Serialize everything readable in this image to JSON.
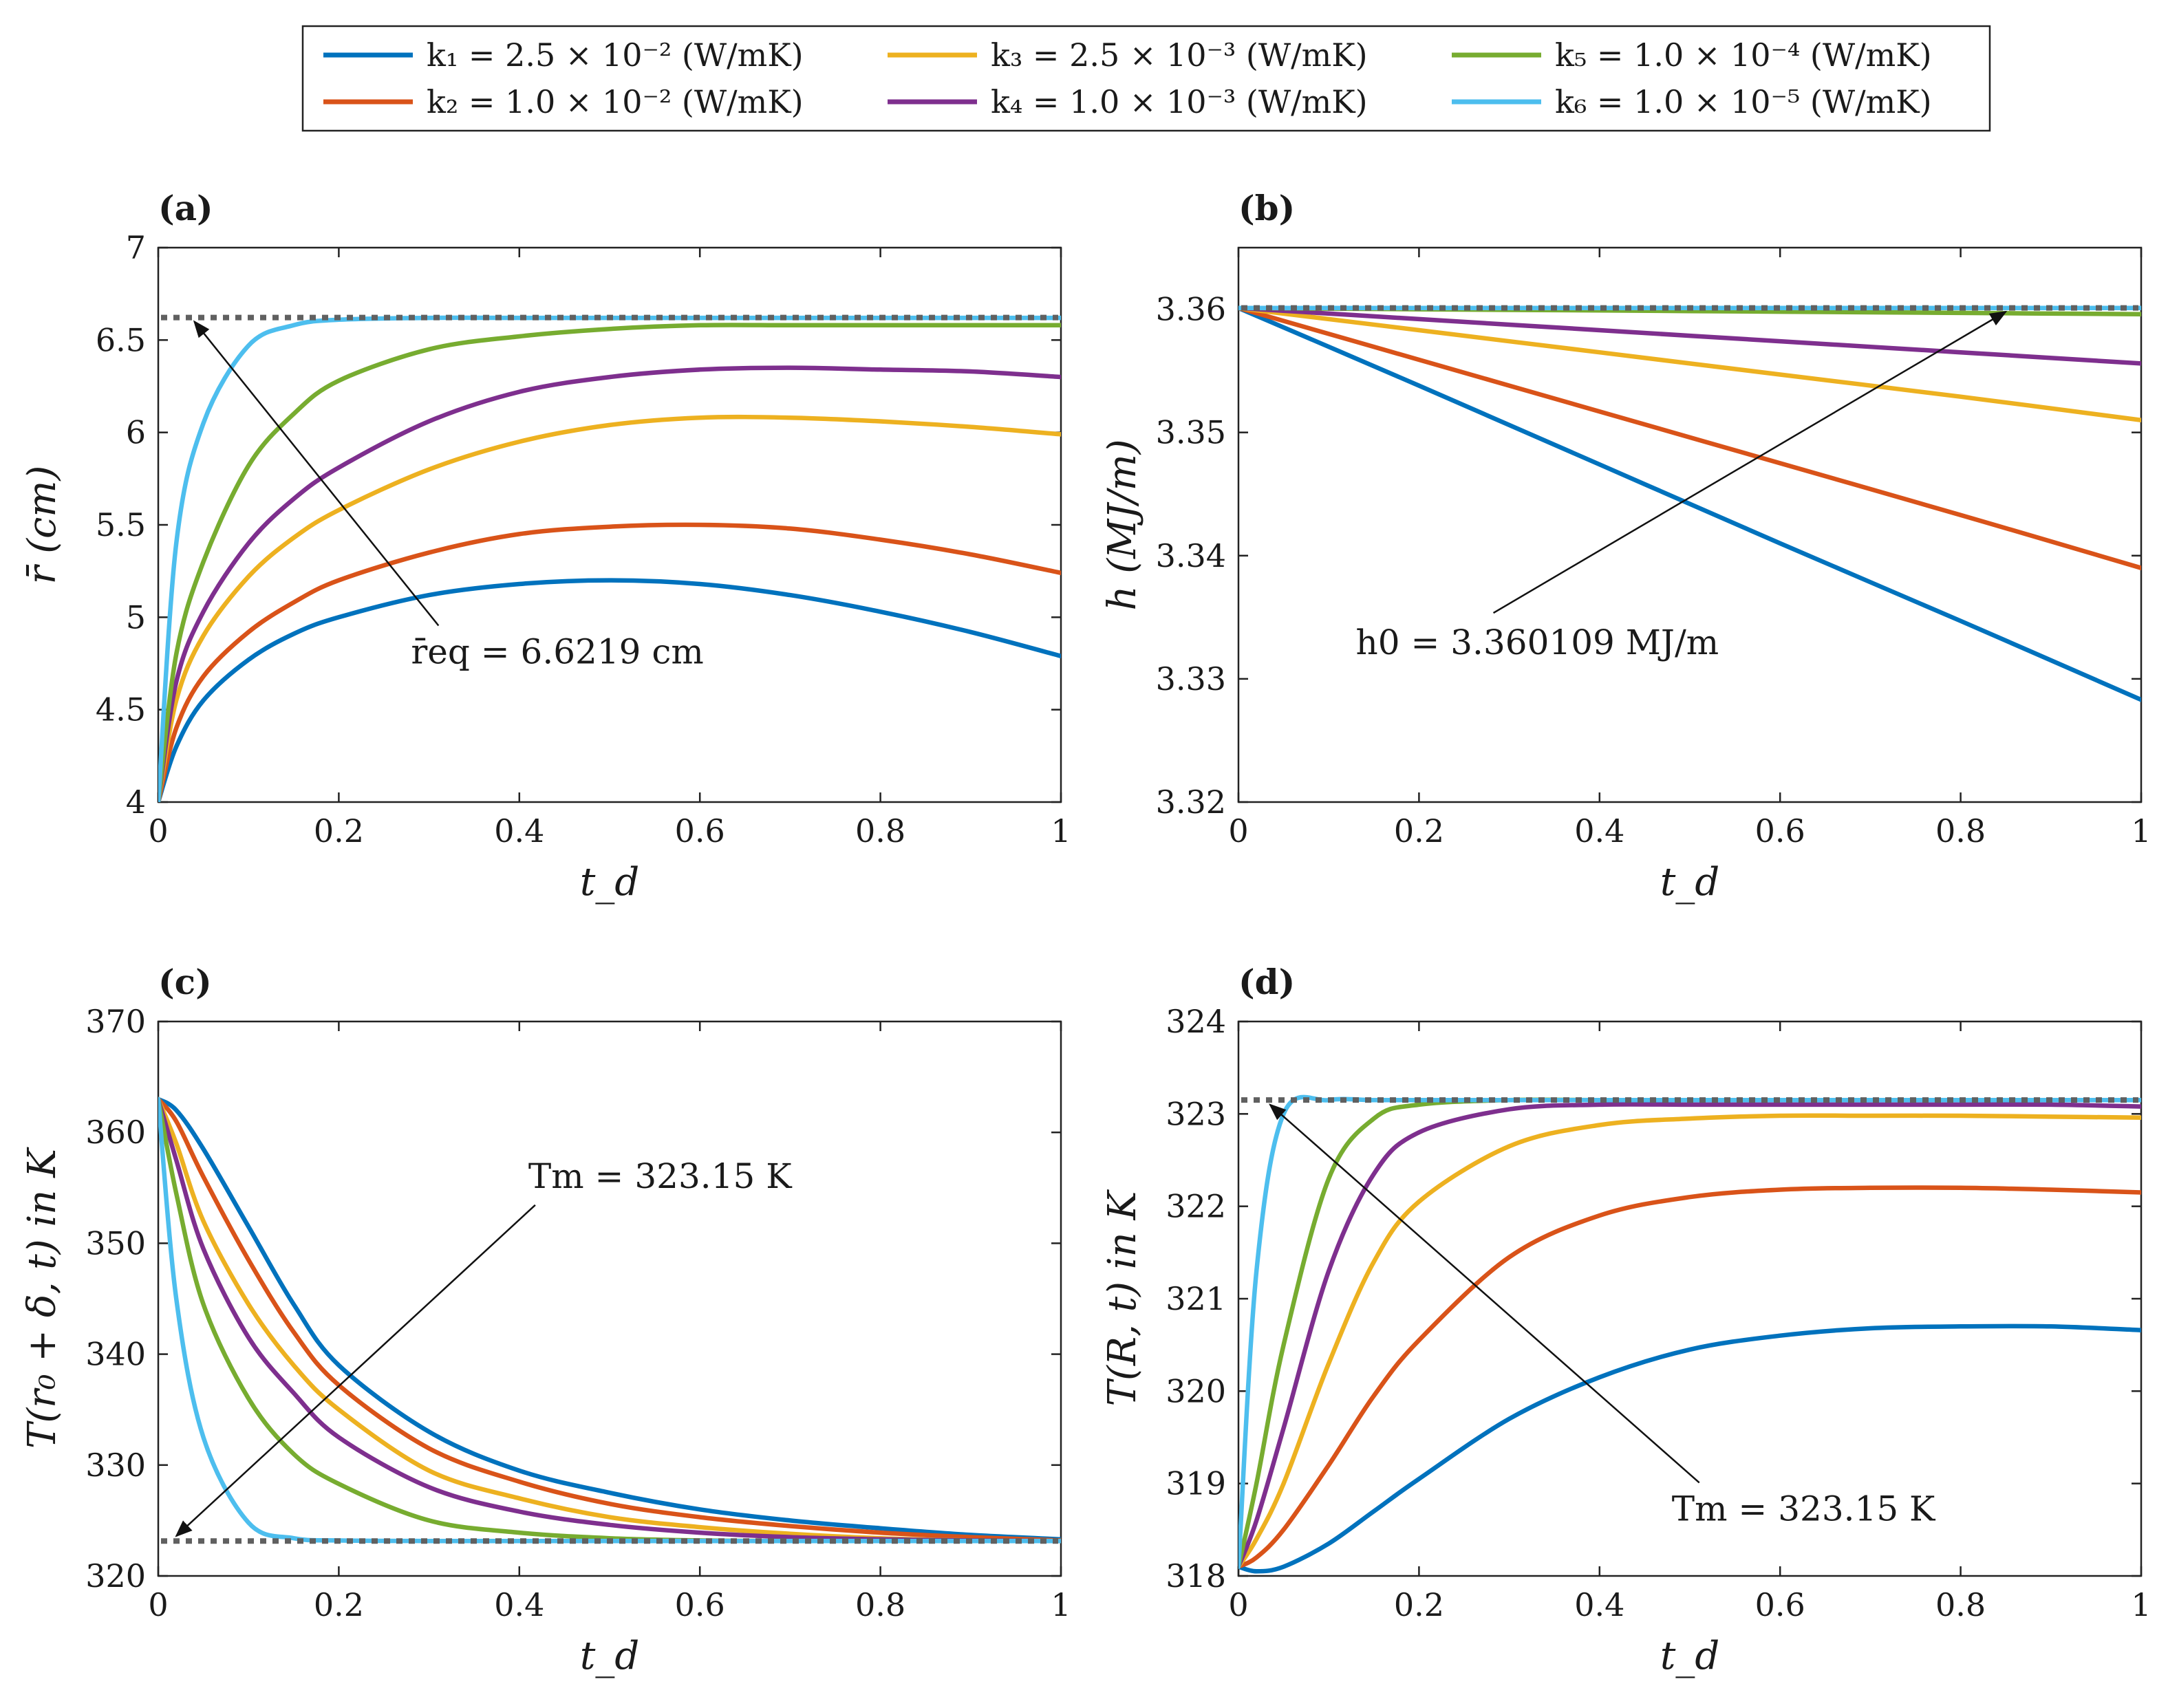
{
  "colors": {
    "k1": "#0072BD",
    "k2": "#D95319",
    "k3": "#EDB120",
    "k4": "#7E2F8E",
    "k5": "#77AC30",
    "k6": "#4DBEEE",
    "reference": "#606060"
  },
  "legend": {
    "placement": "top-center",
    "entries": [
      {
        "series": "k1",
        "label": "k₁ = 2.5 × 10⁻² (W/mK)"
      },
      {
        "series": "k2",
        "label": "k₂ = 1.0 × 10⁻² (W/mK)"
      },
      {
        "series": "k3",
        "label": "k₃ = 2.5 × 10⁻³ (W/mK)"
      },
      {
        "series": "k4",
        "label": "k₄ = 1.0 × 10⁻³ (W/mK)"
      },
      {
        "series": "k5",
        "label": "k₅ = 1.0 × 10⁻⁴ (W/mK)"
      },
      {
        "series": "k6",
        "label": "k₆ = 1.0 × 10⁻⁵ (W/mK)"
      }
    ]
  },
  "chart_data": [
    {
      "id": "a",
      "type": "line",
      "panel_label": "(a)",
      "xlabel": "t_d",
      "ylabel": "r̄ (cm)",
      "xlim": [
        0,
        1
      ],
      "ylim": [
        4,
        7
      ],
      "xticks": [
        "0",
        "0.2",
        "0.4",
        "0.6",
        "0.8",
        "1"
      ],
      "yticks": [
        "4",
        "4.5",
        "5",
        "5.5",
        "6",
        "6.5",
        "7"
      ],
      "x": [
        0,
        0.02,
        0.05,
        0.1,
        0.15,
        0.2,
        0.3,
        0.4,
        0.5,
        0.6,
        0.7,
        0.8,
        0.9,
        1.0
      ],
      "reference": {
        "y": 6.6219,
        "label": "r̄_eq = 6.6219 cm"
      },
      "annotation": {
        "text": "r̄eq = 6.6219 cm",
        "text_at": [
          0.28,
          4.75
        ],
        "arrow_to": [
          0.04,
          6.6
        ]
      },
      "series": [
        {
          "key": "k1",
          "values": [
            4.0,
            4.3,
            4.55,
            4.77,
            4.91,
            5.0,
            5.12,
            5.18,
            5.2,
            5.18,
            5.12,
            5.03,
            4.92,
            4.79
          ]
        },
        {
          "key": "k2",
          "values": [
            4.0,
            4.4,
            4.68,
            4.92,
            5.08,
            5.2,
            5.35,
            5.45,
            5.49,
            5.5,
            5.48,
            5.42,
            5.34,
            5.24
          ]
        },
        {
          "key": "k3",
          "values": [
            4.0,
            4.55,
            4.9,
            5.22,
            5.43,
            5.58,
            5.8,
            5.95,
            6.04,
            6.08,
            6.08,
            6.06,
            6.03,
            5.99
          ]
        },
        {
          "key": "k4",
          "values": [
            4.0,
            4.65,
            5.03,
            5.4,
            5.64,
            5.81,
            6.06,
            6.22,
            6.3,
            6.34,
            6.35,
            6.34,
            6.33,
            6.3
          ]
        },
        {
          "key": "k5",
          "values": [
            4.0,
            4.8,
            5.3,
            5.82,
            6.1,
            6.28,
            6.45,
            6.52,
            6.56,
            6.58,
            6.58,
            6.58,
            6.58,
            6.58
          ]
        },
        {
          "key": "k6",
          "values": [
            4.0,
            5.4,
            6.05,
            6.47,
            6.58,
            6.61,
            6.62,
            6.62,
            6.62,
            6.62,
            6.62,
            6.62,
            6.62,
            6.62
          ]
        }
      ]
    },
    {
      "id": "b",
      "type": "line",
      "panel_label": "(b)",
      "xlabel": "t_d",
      "ylabel": "h (MJ/m)",
      "xlim": [
        0,
        1
      ],
      "ylim": [
        3.32,
        3.365
      ],
      "xticks": [
        "0",
        "0.2",
        "0.4",
        "0.6",
        "0.8",
        "1"
      ],
      "yticks": [
        "3.32",
        "3.33",
        "3.34",
        "3.35",
        "3.36"
      ],
      "x": [
        0,
        0.2,
        0.4,
        0.6,
        0.8,
        1.0
      ],
      "reference": {
        "y": 3.360109,
        "label": "h₀ = 3.360109 MJ/m"
      },
      "annotation": {
        "text": "h0 = 3.360109 MJ/m",
        "text_at": [
          0.13,
          3.332
        ],
        "arrow_to": [
          0.85,
          3.3598
        ]
      },
      "series": [
        {
          "key": "k1",
          "values": [
            3.3601,
            3.3538,
            3.3474,
            3.341,
            3.3347,
            3.3283
          ]
        },
        {
          "key": "k2",
          "values": [
            3.3601,
            3.3559,
            3.3517,
            3.3475,
            3.3433,
            3.339
          ]
        },
        {
          "key": "k3",
          "values": [
            3.3601,
            3.3583,
            3.3565,
            3.3547,
            3.3529,
            3.351
          ]
        },
        {
          "key": "k4",
          "values": [
            3.3601,
            3.3592,
            3.3583,
            3.3574,
            3.3565,
            3.3556
          ]
        },
        {
          "key": "k5",
          "values": [
            3.3601,
            3.36,
            3.3599,
            3.3598,
            3.3597,
            3.3596
          ]
        },
        {
          "key": "k6",
          "values": [
            3.3601,
            3.3601,
            3.3601,
            3.3601,
            3.3601,
            3.3601
          ]
        }
      ]
    },
    {
      "id": "c",
      "type": "line",
      "panel_label": "(c)",
      "xlabel": "t_d",
      "ylabel": "T(r₀ + δ, t) in K",
      "xlim": [
        0,
        1
      ],
      "ylim": [
        320,
        370
      ],
      "xticks": [
        "0",
        "0.2",
        "0.4",
        "0.6",
        "0.8",
        "1"
      ],
      "yticks": [
        "320",
        "330",
        "340",
        "350",
        "360",
        "370"
      ],
      "x": [
        0,
        0.02,
        0.05,
        0.1,
        0.15,
        0.2,
        0.3,
        0.4,
        0.5,
        0.6,
        0.7,
        0.8,
        0.9,
        1.0
      ],
      "reference": {
        "y": 323.15,
        "label": "T_m = 323.15 K"
      },
      "annotation": {
        "text": "Tm = 323.15 K",
        "text_at": [
          0.41,
          355.0
        ],
        "arrow_to": [
          0.02,
          323.6
        ]
      },
      "series": [
        {
          "key": "k1",
          "values": [
            363.0,
            362.0,
            358.5,
            351.5,
            344.5,
            339.0,
            333.0,
            329.5,
            327.5,
            326.0,
            325.0,
            324.3,
            323.7,
            323.3
          ]
        },
        {
          "key": "k2",
          "values": [
            363.0,
            361.0,
            356.0,
            348.5,
            342.0,
            337.2,
            331.5,
            328.5,
            326.5,
            325.3,
            324.5,
            323.9,
            323.5,
            323.2
          ]
        },
        {
          "key": "k3",
          "values": [
            363.0,
            359.0,
            352.0,
            344.5,
            339.0,
            335.0,
            329.5,
            327.0,
            325.3,
            324.4,
            323.8,
            323.4,
            323.2,
            323.15
          ]
        },
        {
          "key": "k4",
          "values": [
            363.0,
            357.5,
            349.5,
            341.5,
            336.5,
            332.5,
            328.0,
            325.8,
            324.6,
            323.9,
            323.5,
            323.3,
            323.2,
            323.15
          ]
        },
        {
          "key": "k5",
          "values": [
            363.0,
            354.5,
            344.5,
            336.0,
            331.0,
            328.3,
            325.0,
            323.9,
            323.4,
            323.2,
            323.15,
            323.15,
            323.15,
            323.15
          ]
        },
        {
          "key": "k6",
          "values": [
            363.0,
            345.0,
            332.5,
            324.8,
            323.4,
            323.2,
            323.15,
            323.15,
            323.15,
            323.15,
            323.15,
            323.15,
            323.15,
            323.15
          ]
        }
      ]
    },
    {
      "id": "d",
      "type": "line",
      "panel_label": "(d)",
      "xlabel": "t_d",
      "ylabel": "T(R, t) in K",
      "xlim": [
        0,
        1
      ],
      "ylim": [
        318,
        324
      ],
      "xticks": [
        "0",
        "0.2",
        "0.4",
        "0.6",
        "0.8",
        "1"
      ],
      "yticks": [
        "318",
        "319",
        "320",
        "321",
        "322",
        "323",
        "324"
      ],
      "x": [
        0,
        0.02,
        0.05,
        0.1,
        0.15,
        0.2,
        0.3,
        0.4,
        0.5,
        0.6,
        0.7,
        0.8,
        0.9,
        1.0
      ],
      "reference": {
        "y": 323.15,
        "label": "T_m = 323.15 K"
      },
      "annotation": {
        "text": "Tm = 323.15 K",
        "text_at": [
          0.48,
          318.6
        ],
        "arrow_to": [
          0.035,
          323.1
        ]
      },
      "series": [
        {
          "key": "k1",
          "values": [
            318.1,
            318.05,
            318.1,
            318.35,
            318.7,
            319.05,
            319.7,
            320.15,
            320.45,
            320.6,
            320.68,
            320.7,
            320.7,
            320.66
          ]
        },
        {
          "key": "k2",
          "values": [
            318.1,
            318.2,
            318.5,
            319.2,
            319.95,
            320.55,
            321.45,
            321.9,
            322.1,
            322.18,
            322.2,
            322.2,
            322.18,
            322.15
          ]
        },
        {
          "key": "k3",
          "values": [
            318.1,
            318.4,
            319.0,
            320.3,
            321.4,
            322.05,
            322.65,
            322.88,
            322.95,
            322.98,
            322.98,
            322.98,
            322.97,
            322.96
          ]
        },
        {
          "key": "k4",
          "values": [
            318.1,
            318.6,
            319.6,
            321.3,
            322.35,
            322.8,
            323.05,
            323.1,
            323.1,
            323.1,
            323.1,
            323.1,
            323.1,
            323.08
          ]
        },
        {
          "key": "k5",
          "values": [
            318.1,
            319.0,
            320.5,
            322.3,
            322.95,
            323.1,
            323.15,
            323.15,
            323.15,
            323.15,
            323.15,
            323.15,
            323.15,
            323.15
          ]
        },
        {
          "key": "k6",
          "values": [
            318.1,
            321.3,
            323.0,
            323.15,
            323.15,
            323.15,
            323.15,
            323.15,
            323.15,
            323.15,
            323.15,
            323.15,
            323.15,
            323.15
          ]
        }
      ]
    }
  ]
}
